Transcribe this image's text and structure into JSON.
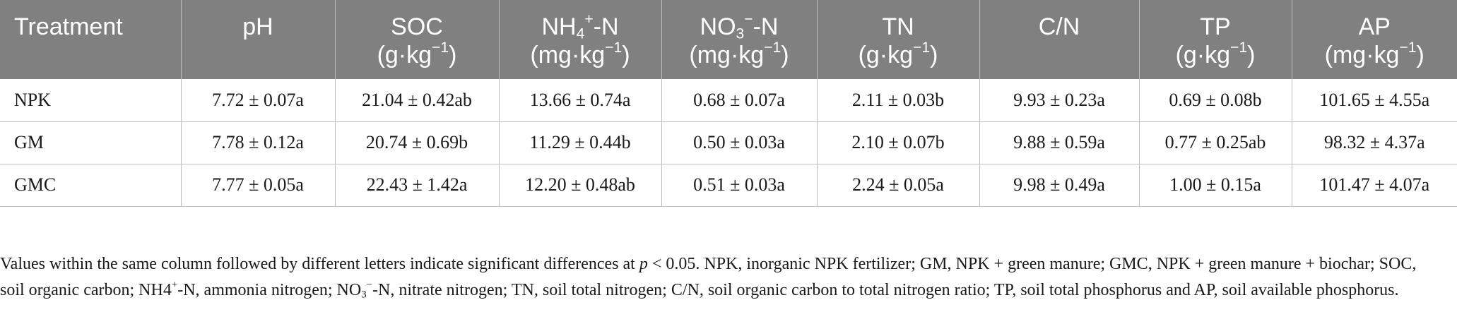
{
  "table": {
    "headers": {
      "treatment": "Treatment",
      "ph": "pH",
      "soc_name": "SOC",
      "soc_unit_pre": "(g·kg",
      "soc_unit_sup": "−1",
      "soc_unit_post": ")",
      "nh4_pre": "NH",
      "nh4_sub": "4",
      "nh4_sup": "+",
      "nh4_post": "-N",
      "nh4_unit_pre": "(mg·kg",
      "nh4_unit_sup": "−1",
      "nh4_unit_post": ")",
      "no3_pre": "NO",
      "no3_sub": "3",
      "no3_sup": "−",
      "no3_post": "-N",
      "no3_unit_pre": "(mg·kg",
      "no3_unit_sup": "−1",
      "no3_unit_post": ")",
      "tn_name": "TN",
      "tn_unit_pre": "(g·kg",
      "tn_unit_sup": "−1",
      "tn_unit_post": ")",
      "cn": "C/N",
      "tp_name": "TP",
      "tp_unit_pre": "(g·kg",
      "tp_unit_sup": "−1",
      "tp_unit_post": ")",
      "ap_name": "AP",
      "ap_unit_pre": "(mg·kg",
      "ap_unit_sup": "−1",
      "ap_unit_post": ")"
    },
    "rows": [
      {
        "treatment": "NPK",
        "ph": "7.72 ± 0.07a",
        "soc": "21.04 ± 0.42ab",
        "nh4": "13.66 ± 0.74a",
        "no3": "0.68 ± 0.07a",
        "tn": "2.11 ± 0.03b",
        "cn": "9.93 ± 0.23a",
        "tp": "0.69 ± 0.08b",
        "ap": "101.65 ± 4.55a"
      },
      {
        "treatment": "GM",
        "ph": "7.78 ± 0.12a",
        "soc": "20.74 ± 0.69b",
        "nh4": "11.29 ± 0.44b",
        "no3": "0.50 ± 0.03a",
        "tn": "2.10 ± 0.07b",
        "cn": "9.88 ± 0.59a",
        "tp": "0.77 ± 0.25ab",
        "ap": "98.32 ± 4.37a"
      },
      {
        "treatment": "GMC",
        "ph": "7.77 ± 0.05a",
        "soc": "22.43 ± 1.42a",
        "nh4": "12.20 ± 0.48ab",
        "no3": "0.51 ± 0.03a",
        "tn": "2.24 ± 0.05a",
        "cn": "9.98 ± 0.49a",
        "tp": "1.00 ± 0.15a",
        "ap": "101.47 ± 4.07a"
      }
    ]
  },
  "footnote": {
    "part1": "Values within the same column followed by different letters indicate significant differences at ",
    "p": "p",
    "part2": " < 0.05. NPK, inorganic NPK fertilizer; GM, NPK + green manure; GMC, NPK + green manure + biochar; SOC, soil organic carbon; NH4",
    "part2_sup": "+",
    "part3": "-N, ammonia nitrogen; NO",
    "part3_sub": "3",
    "part3_sup": "−",
    "part4": "-N, nitrate nitrogen; TN, soil total nitrogen; C/N, soil organic carbon to total nitrogen ratio; TP, soil total phosphorus and AP, soil available phosphorus."
  }
}
